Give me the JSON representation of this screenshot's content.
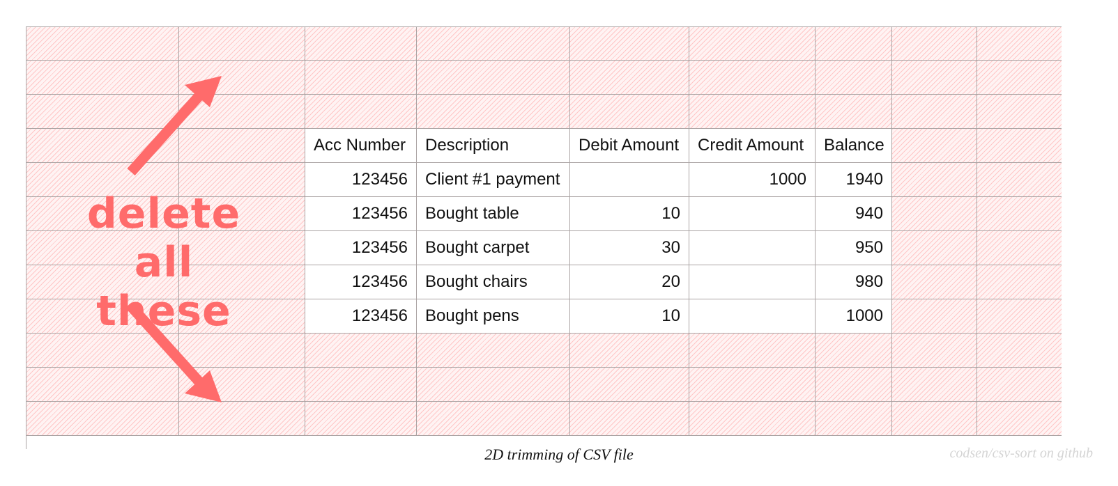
{
  "table": {
    "headers": [
      "Acc Number",
      "Description",
      "Debit Amount",
      "Credit Amount",
      "Balance"
    ],
    "rows": [
      [
        "123456",
        "Client #1 payment",
        "",
        "1000",
        "1940"
      ],
      [
        "123456",
        "Bought table",
        "10",
        "",
        "940"
      ],
      [
        "123456",
        "Bought carpet",
        "30",
        "",
        "950"
      ],
      [
        "123456",
        "Bought chairs",
        "20",
        "",
        "980"
      ],
      [
        "123456",
        "Bought pens",
        "10",
        "",
        "1000"
      ]
    ]
  },
  "callout": {
    "line1": "delete all",
    "line2": "these",
    "color": "#ff6b6b"
  },
  "caption": "2D trimming of  CSV file",
  "credit": "codsen/csv-sort on github",
  "colors": {
    "hatch": "#ffa0a0",
    "grid": "#aaa3a3"
  }
}
